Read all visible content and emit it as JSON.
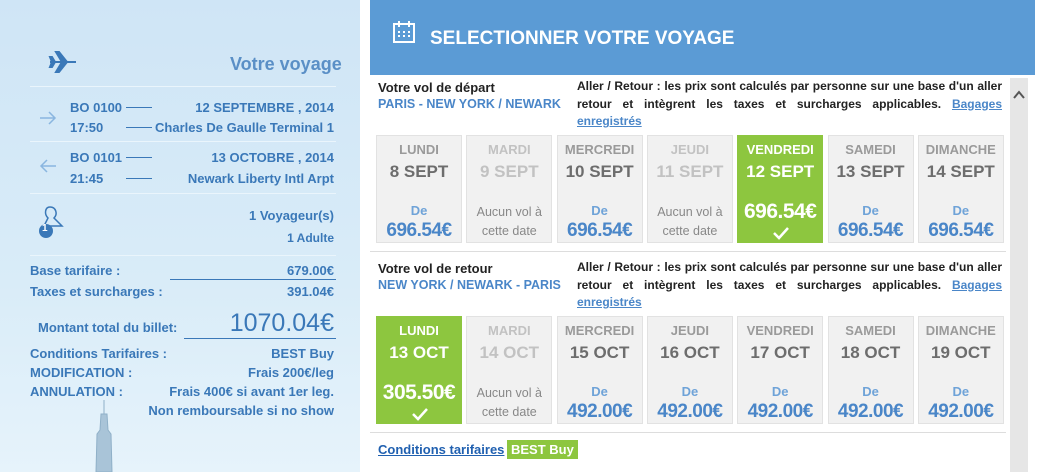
{
  "summary": {
    "title": "Votre voyage",
    "outbound": {
      "flight": "BO 0100",
      "time": "17:50",
      "date": "12 SEPTEMBRE , 2014",
      "airport": "Charles De Gaulle Terminal 1"
    },
    "inbound": {
      "flight": "BO 0101",
      "time": "21:45",
      "date": "13 OCTOBRE , 2014",
      "airport": "Newark Liberty Intl Arpt"
    },
    "travelers": {
      "badge": "1",
      "count": "1 Voyageur(s)",
      "type": "1 Adulte"
    },
    "base": {
      "label": "Base tarifaire :",
      "value": "679.00€"
    },
    "taxes": {
      "label": "Taxes et surcharges :",
      "value": "391.04€"
    },
    "total": {
      "label": "Montant total du billet:",
      "value": "1070.04€"
    },
    "conditions": [
      {
        "label": "Conditions Tarifaires :",
        "value": "BEST Buy"
      },
      {
        "label": "MODIFICATION :",
        "value": "Frais 200€/leg"
      },
      {
        "label": "ANNULATION :",
        "value": "Frais 400€ si avant 1er leg."
      },
      {
        "label": null,
        "value": "Non remboursable si no show"
      }
    ]
  },
  "selection": {
    "title": "SELECTIONNER VOTRE VOYAGE",
    "sections": [
      {
        "heading": "Votre vol de départ",
        "route": "PARIS - NEW YORK / NEWARK",
        "info": "Aller / Retour : les prix sont calculés par personne sur une base d'un aller retour et intègrent les taxes et surcharges applicables.",
        "link": "Bagages enregistrés",
        "selected": 4,
        "days": [
          {
            "day": "LUNDI",
            "date": "8 SEPT",
            "from": "De",
            "price": "696.54€"
          },
          {
            "day": "MARDI",
            "date": "9 SEPT",
            "note": "Aucun vol à cette date"
          },
          {
            "day": "MERCREDI",
            "date": "10 SEPT",
            "from": "De",
            "price": "696.54€"
          },
          {
            "day": "JEUDI",
            "date": "11 SEPT",
            "note": "Aucun vol à cette date"
          },
          {
            "day": "VENDREDI",
            "date": "12 SEPT",
            "price": "696.54€"
          },
          {
            "day": "SAMEDI",
            "date": "13 SEPT",
            "from": "De",
            "price": "696.54€"
          },
          {
            "day": "DIMANCHE",
            "date": "14 SEPT",
            "from": "De",
            "price": "696.54€"
          }
        ]
      },
      {
        "heading": "Votre vol de retour",
        "route": "NEW YORK / NEWARK - PARIS",
        "info": "Aller / Retour : les prix sont calculés par personne sur une base d'un aller retour et intègrent les taxes et surcharges applicables.",
        "link": "Bagages enregistrés",
        "selected": 0,
        "days": [
          {
            "day": "LUNDI",
            "date": "13 OCT",
            "price": "305.50€"
          },
          {
            "day": "MARDI",
            "date": "14 OCT",
            "note": "Aucun vol à cette date"
          },
          {
            "day": "MERCREDI",
            "date": "15 OCT",
            "from": "De",
            "price": "492.00€"
          },
          {
            "day": "JEUDI",
            "date": "16 OCT",
            "from": "De",
            "price": "492.00€"
          },
          {
            "day": "VENDREDI",
            "date": "17 OCT",
            "from": "De",
            "price": "492.00€"
          },
          {
            "day": "SAMEDI",
            "date": "18 OCT",
            "from": "De",
            "price": "492.00€"
          },
          {
            "day": "DIMANCHE",
            "date": "19 OCT",
            "from": "De",
            "price": "492.00€"
          }
        ]
      }
    ],
    "footer": {
      "link": "Conditions tarifaires",
      "badge": "BEST Buy"
    }
  }
}
